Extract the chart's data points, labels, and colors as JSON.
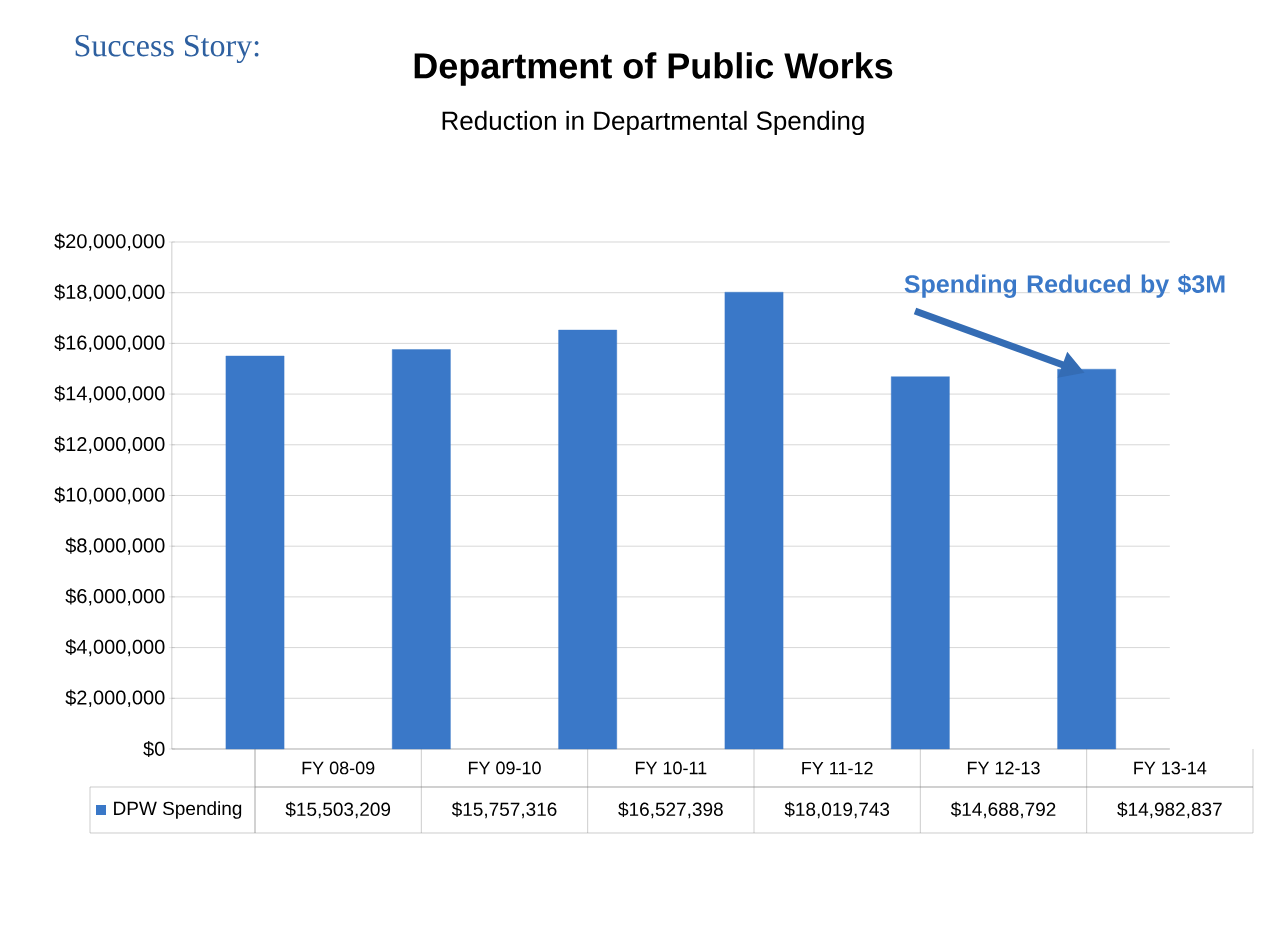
{
  "chart_data": {
    "type": "bar",
    "title": "Department of Public Works",
    "subtitle": "Reduction in Departmental Spending",
    "annotations": [
      "Success Story:",
      "Spending Reduced by $3M"
    ],
    "categories": [
      "FY 08-09",
      "FY 09-10",
      "FY 10-11",
      "FY 11-12",
      "FY 12-13",
      "FY 13-14"
    ],
    "series": [
      {
        "name": "DPW Spending",
        "color": "#3a78c8",
        "values": [
          15503209,
          15757316,
          16527398,
          18019743,
          14688792,
          14982837
        ],
        "value_labels": [
          "$15,503,209",
          "$15,757,316",
          "$16,527,398",
          "$18,019,743",
          "$14,688,792",
          "$14,982,837"
        ]
      }
    ],
    "ylim": [
      0,
      20000000
    ],
    "yticks": [
      {
        "value": 0,
        "label": "$0"
      },
      {
        "value": 2000000,
        "label": "$2,000,000"
      },
      {
        "value": 4000000,
        "label": "$4,000,000"
      },
      {
        "value": 6000000,
        "label": "$6,000,000"
      },
      {
        "value": 8000000,
        "label": "$8,000,000"
      },
      {
        "value": 10000000,
        "label": "$10,000,000"
      },
      {
        "value": 12000000,
        "label": "$12,000,000"
      },
      {
        "value": 14000000,
        "label": "$14,000,000"
      },
      {
        "value": 16000000,
        "label": "$16,000,000"
      },
      {
        "value": 18000000,
        "label": "$18,000,000"
      },
      {
        "value": 20000000,
        "label": "$20,000,000"
      }
    ],
    "grid": "y"
  }
}
